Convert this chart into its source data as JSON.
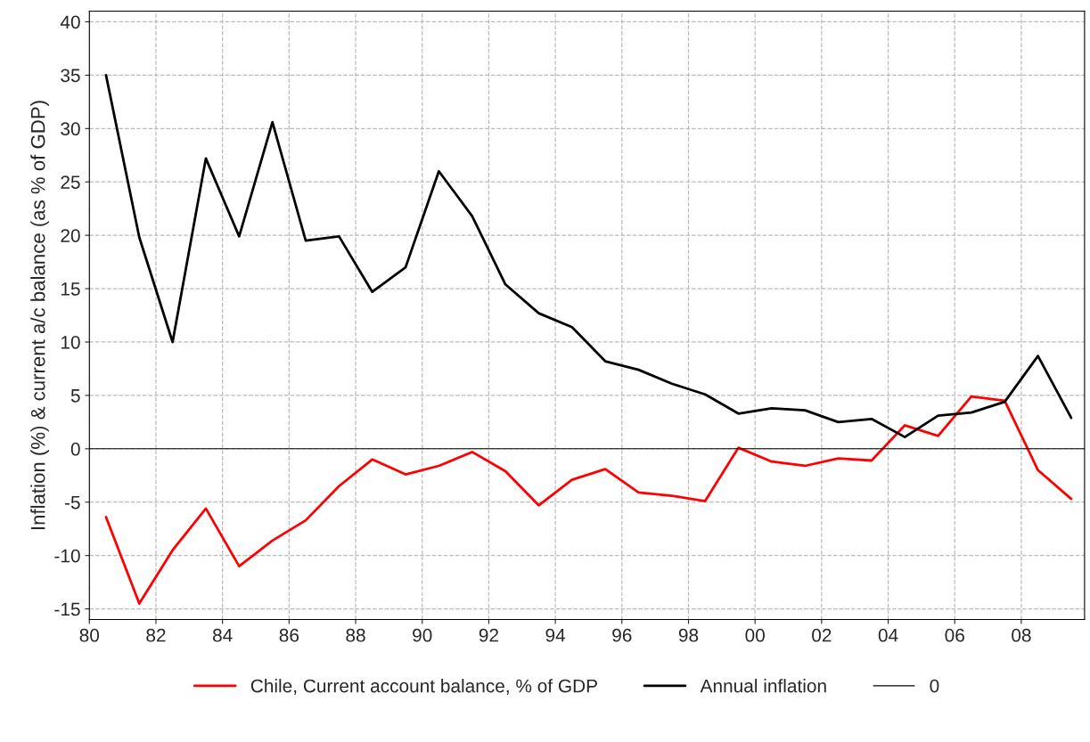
{
  "chart_data": {
    "type": "line",
    "ylabel": "Inflation (%) & current a/c balance (as % of GDP)",
    "x": [
      1980.5,
      1981.5,
      1982.5,
      1983.5,
      1984.5,
      1985.5,
      1986.5,
      1987.5,
      1988.5,
      1989.5,
      1990.5,
      1991.5,
      1992.5,
      1993.5,
      1994.5,
      1995.5,
      1996.5,
      1997.5,
      1998.5,
      1999.5,
      2000.5,
      2001.5,
      2002.5,
      2003.5,
      2004.5,
      2005.5,
      2006.5,
      2007.5,
      2008.5,
      2009.5
    ],
    "series": [
      {
        "name": "Chile, Current account balance, % of GDP",
        "color": "#ff0000",
        "values": [
          -6.4,
          -14.5,
          -9.5,
          -5.6,
          -11,
          -8.6,
          -6.7,
          -3.5,
          -1,
          -2.4,
          -1.6,
          -0.3,
          -2.1,
          -5.3,
          -2.9,
          -1.9,
          -4.1,
          -4.4,
          -4.9,
          0.1,
          -1.2,
          -1.6,
          -0.9,
          -1.1,
          2.2,
          1.2,
          4.9,
          4.5,
          -2,
          -4.7
        ]
      },
      {
        "name": "Annual inflation",
        "color": "#000000",
        "values": [
          35,
          19.8,
          10,
          27.2,
          19.9,
          30.6,
          19.5,
          19.9,
          14.7,
          17,
          26,
          21.8,
          15.4,
          12.7,
          11.4,
          8.2,
          7.4,
          6.1,
          5.1,
          3.3,
          3.8,
          3.6,
          2.5,
          2.8,
          1.1,
          3.1,
          3.4,
          4.4,
          8.7,
          2.9
        ]
      }
    ],
    "ref_lines": [
      {
        "axis": "y",
        "value": 0,
        "label": "0",
        "color": "#000000",
        "line_style": "solid"
      }
    ],
    "xlim": [
      1980,
      2009.9
    ],
    "xticks": [
      {
        "value": 1980,
        "label": "80"
      },
      {
        "value": 1982,
        "label": "82"
      },
      {
        "value": 1984,
        "label": "84"
      },
      {
        "value": 1986,
        "label": "86"
      },
      {
        "value": 1988,
        "label": "88"
      },
      {
        "value": 1990,
        "label": "90"
      },
      {
        "value": 1992,
        "label": "92"
      },
      {
        "value": 1994,
        "label": "94"
      },
      {
        "value": 1996,
        "label": "96"
      },
      {
        "value": 1998,
        "label": "98"
      },
      {
        "value": 2000,
        "label": "00"
      },
      {
        "value": 2002,
        "label": "02"
      },
      {
        "value": 2004,
        "label": "04"
      },
      {
        "value": 2006,
        "label": "06"
      },
      {
        "value": 2008,
        "label": "08"
      }
    ],
    "ylim": [
      -16,
      41
    ],
    "yticks": [
      -15,
      -10,
      -5,
      0,
      5,
      10,
      15,
      20,
      25,
      30,
      35,
      40
    ],
    "grid": true,
    "legend": "bottom",
    "marker": "none",
    "line_style": "solid"
  }
}
